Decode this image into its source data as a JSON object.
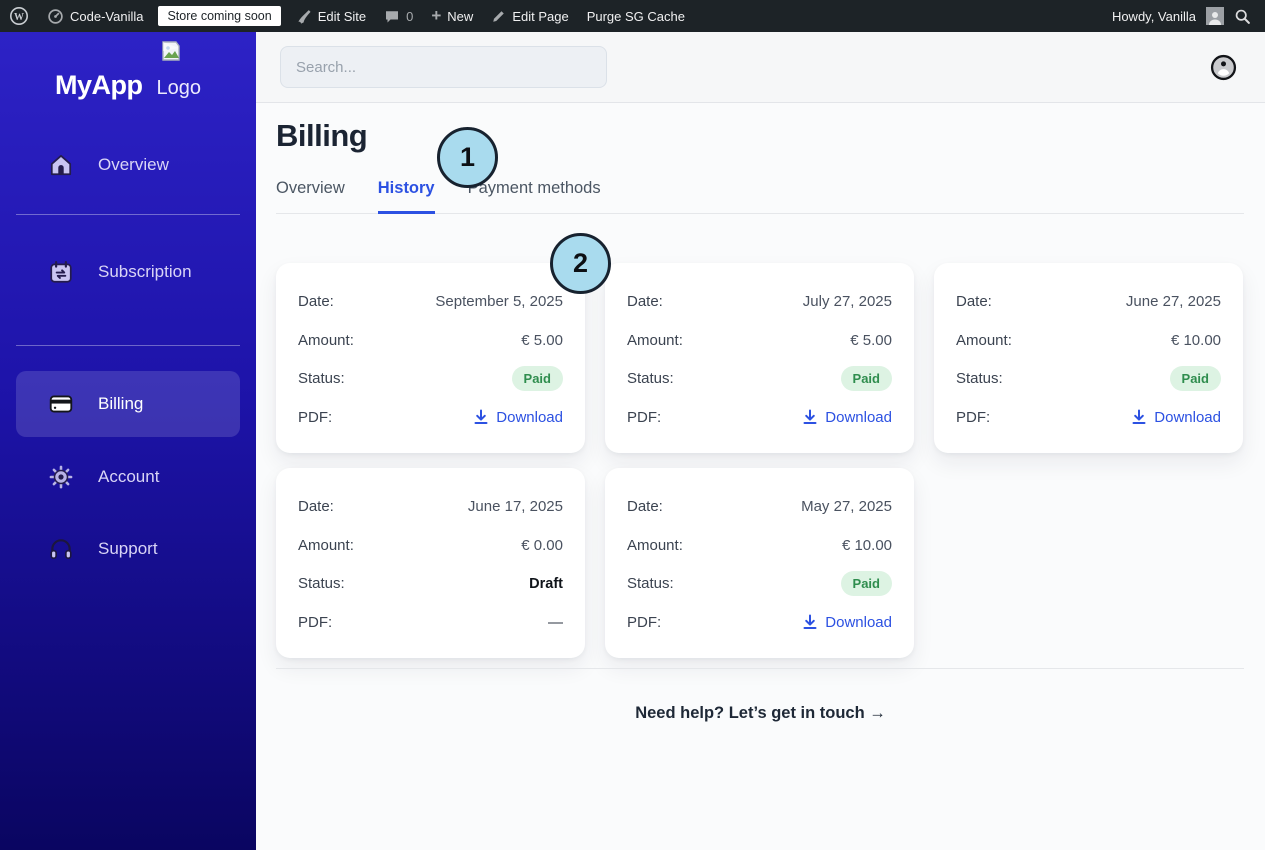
{
  "admin_bar": {
    "site_name": "Code-Vanilla",
    "coming_soon_badge": "Store coming soon",
    "edit_site": "Edit Site",
    "comments_count": "0",
    "new_label": "New",
    "edit_page": "Edit Page",
    "purge_cache": "Purge SG Cache",
    "howdy": "Howdy, Vanilla"
  },
  "sidebar": {
    "brand": "MyApp",
    "logo_alt": "Logo",
    "items": [
      {
        "label": "Overview",
        "icon": "home-icon",
        "active": false
      },
      {
        "label": "Subscription",
        "icon": "calendar-sync-icon",
        "active": false
      },
      {
        "label": "Billing",
        "icon": "credit-card-icon",
        "active": true
      },
      {
        "label": "Account",
        "icon": "gear-icon",
        "active": false
      },
      {
        "label": "Support",
        "icon": "headphones-icon",
        "active": false
      }
    ]
  },
  "header": {
    "search_placeholder": "Search..."
  },
  "page": {
    "title": "Billing",
    "tabs": [
      {
        "label": "Overview",
        "active": false
      },
      {
        "label": "History",
        "active": true
      },
      {
        "label": "Payment methods",
        "active": false
      }
    ],
    "labels": {
      "date": "Date:",
      "amount": "Amount:",
      "status": "Status:",
      "pdf": "PDF:"
    },
    "invoices": [
      {
        "date": "September 5, 2025",
        "amount": "€ 5.00",
        "status": "Paid",
        "pdf": "Download"
      },
      {
        "date": "July 27, 2025",
        "amount": "€ 5.00",
        "status": "Paid",
        "pdf": "Download"
      },
      {
        "date": "June 27, 2025",
        "amount": "€ 10.00",
        "status": "Paid",
        "pdf": "Download"
      },
      {
        "date": "June 17, 2025",
        "amount": "€ 0.00",
        "status": "Draft",
        "pdf": "—"
      },
      {
        "date": "May 27, 2025",
        "amount": "€ 10.00",
        "status": "Paid",
        "pdf": "Download"
      }
    ],
    "help_text": "Need help? Let’s get in touch →"
  },
  "annotations": [
    {
      "number": "1"
    },
    {
      "number": "2"
    }
  ],
  "colors": {
    "accent": "#2c51e2",
    "sidebar_top": "#2d22c6",
    "sidebar_bottom": "#0a0561",
    "paid_bg": "#ddf3e3",
    "paid_text": "#2f8d4e",
    "annotation_fill": "#a9dbee",
    "adminbar_bg": "#1d2327"
  }
}
